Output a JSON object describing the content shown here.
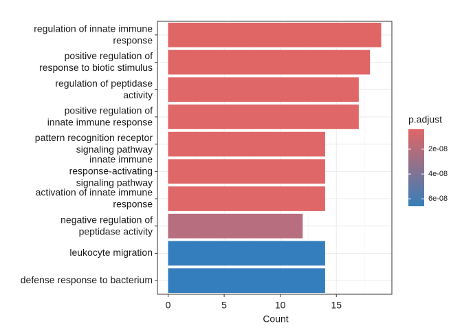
{
  "chart_data": {
    "type": "bar",
    "orientation": "horizontal",
    "categories": [
      "regulation of innate immune\nresponse",
      "positive regulation of\nresponse to biotic stimulus",
      "regulation of peptidase\nactivity",
      "positive regulation of\ninnate immune response",
      "pattern recognition receptor\nsignaling pathway",
      "innate immune\nresponse-activating\nsignaling pathway",
      "activation of innate immune\nresponse",
      "negative regulation of\npeptidase activity",
      "leukocyte migration",
      "defense response to bacterium"
    ],
    "values": [
      19,
      18,
      17,
      17,
      14,
      14,
      14,
      12,
      14,
      14
    ],
    "colors": [
      "#E06666",
      "#E06666",
      "#E06767",
      "#E06767",
      "#DF6768",
      "#DF6768",
      "#DF6768",
      "#B76E7E",
      "#357EBD",
      "#357EBD"
    ],
    "x_label": "Count",
    "xlim": [
      -0.95,
      19.95
    ],
    "xticks": [
      0,
      5,
      10,
      15
    ],
    "grid": true,
    "legend": {
      "title": "p.adjust",
      "low_color": "#E06666",
      "high_color": "#377EB8",
      "lim": [
        3.9e-09,
        6.6e-08
      ],
      "ticks": [
        {
          "value": 2e-08,
          "label": "2e-08"
        },
        {
          "value": 4e-08,
          "label": "4e-08"
        },
        {
          "value": 6e-08,
          "label": "6e-08"
        }
      ]
    }
  }
}
